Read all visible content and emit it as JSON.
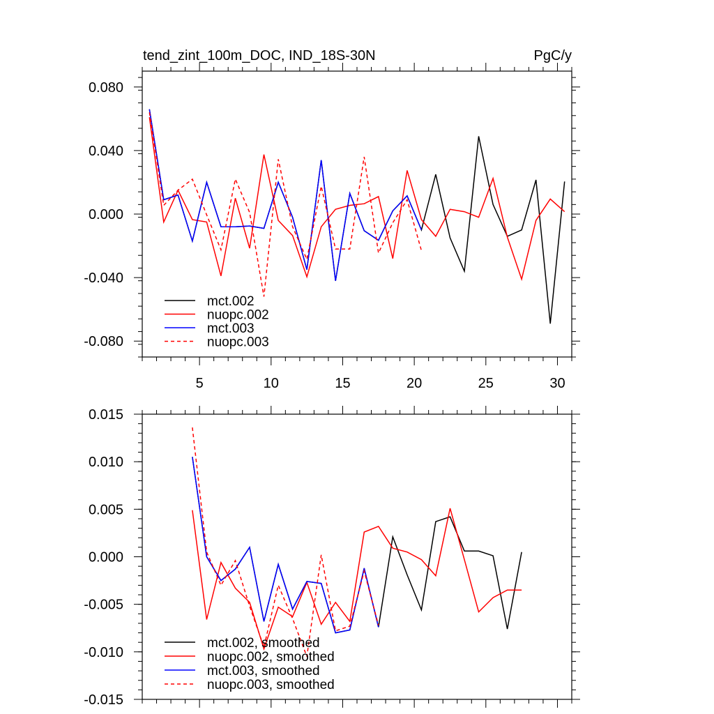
{
  "chart_data": [
    {
      "type": "line",
      "title": "tend_zint_100m_DOC, IND_18S-30N",
      "units": "PgC/y",
      "xlim": [
        1,
        31
      ],
      "ylim": [
        -0.09,
        0.09
      ],
      "xticks": [
        5,
        10,
        15,
        20,
        25,
        30
      ],
      "yticks": [
        0.08,
        0.04,
        0.0,
        -0.04,
        -0.08
      ],
      "ytick_labels": [
        "0.080",
        "0.040",
        "0.000",
        "-0.040",
        "-0.080"
      ],
      "legend_position": "bottom-left",
      "series": [
        {
          "name": "mct.002",
          "color": "#000000",
          "dash": "solid",
          "x": [
            1.5,
            2.5,
            3.5,
            4.5,
            5.5,
            6.5,
            7.5,
            8.5,
            9.5,
            10.5,
            11.5,
            12.5,
            13.5,
            14.5,
            15.5,
            16.5,
            17.5,
            18.5,
            19.5,
            20.5,
            21.5,
            22.5,
            23.5,
            24.5,
            25.5,
            26.5,
            27.5,
            28.5,
            29.5,
            30.5
          ],
          "y": [
            0.066,
            0.009,
            0.012,
            -0.017,
            0.02,
            -0.008,
            -0.008,
            -0.0075,
            -0.009,
            0.02,
            -0.002,
            -0.035,
            0.034,
            -0.042,
            0.013,
            -0.0105,
            -0.0165,
            0.002,
            0.0115,
            -0.01,
            0.025,
            -0.015,
            -0.036,
            0.049,
            0.006,
            -0.014,
            -0.01,
            0.0215,
            -0.069,
            0.0205
          ]
        },
        {
          "name": "nuopc.002",
          "color": "#ff0000",
          "dash": "solid",
          "x": [
            1.5,
            2.5,
            3.5,
            4.5,
            5.5,
            6.5,
            7.5,
            8.5,
            9.5,
            10.5,
            11.5,
            12.5,
            13.5,
            14.5,
            15.5,
            16.5,
            17.5,
            18.5,
            19.5,
            20.5,
            21.5,
            22.5,
            23.5,
            24.5,
            25.5,
            26.5,
            27.5,
            28.5,
            29.5,
            30.5
          ],
          "y": [
            0.061,
            -0.005,
            0.015,
            -0.0035,
            -0.005,
            -0.039,
            0.01,
            -0.0215,
            0.0375,
            -0.004,
            -0.0135,
            -0.0395,
            -0.008,
            0.003,
            0.0055,
            0.0065,
            0.011,
            -0.028,
            0.0275,
            -0.0035,
            -0.014,
            0.003,
            0.0015,
            -0.002,
            0.0225,
            -0.0145,
            -0.041,
            -0.004,
            0.0095,
            0.0015
          ]
        },
        {
          "name": "mct.003",
          "color": "#0000ff",
          "dash": "solid",
          "x": [
            1.5,
            2.5,
            3.5,
            4.5,
            5.5,
            6.5,
            7.5,
            8.5,
            9.5,
            10.5,
            11.5,
            12.5,
            13.5,
            14.5,
            15.5,
            16.5,
            17.5,
            18.5,
            19.5,
            20.5
          ],
          "y": [
            0.066,
            0.009,
            0.012,
            -0.017,
            0.02,
            -0.008,
            -0.008,
            -0.0075,
            -0.009,
            0.02,
            -0.002,
            -0.035,
            0.034,
            -0.042,
            0.013,
            -0.0105,
            -0.0165,
            0.002,
            0.0115,
            -0.01
          ]
        },
        {
          "name": "nuopc.003",
          "color": "#ff0000",
          "dash": "dashed",
          "x": [
            1.5,
            2.5,
            3.5,
            4.5,
            5.5,
            6.5,
            7.5,
            8.5,
            9.5,
            10.5,
            11.5,
            12.5,
            13.5,
            14.5,
            15.5,
            16.5,
            17.5,
            18.5,
            19.5,
            20.5
          ],
          "y": [
            0.064,
            0.0055,
            0.015,
            0.022,
            -0.0005,
            -0.0225,
            0.022,
            0.001,
            -0.052,
            0.0345,
            -0.008,
            -0.0285,
            0.0175,
            -0.022,
            -0.022,
            0.036,
            -0.0245,
            -0.0055,
            0.009,
            -0.023
          ]
        }
      ]
    },
    {
      "type": "line",
      "title": "",
      "xlim": [
        1,
        31
      ],
      "ylim": [
        -0.015,
        0.015
      ],
      "xticks": [
        5,
        10,
        15,
        20,
        25,
        30
      ],
      "yticks": [
        0.015,
        0.01,
        0.005,
        0.0,
        -0.005,
        -0.01,
        -0.015
      ],
      "ytick_labels": [
        "0.015",
        "0.010",
        "0.005",
        "0.000",
        "-0.005",
        "-0.010",
        "-0.015"
      ],
      "legend_position": "bottom-left",
      "series": [
        {
          "name": "mct.002, smoothed",
          "color": "#000000",
          "dash": "solid",
          "x": [
            4.5,
            5.5,
            6.5,
            7.5,
            8.5,
            9.5,
            10.5,
            11.5,
            12.5,
            13.5,
            14.5,
            15.5,
            16.5,
            17.5,
            18.5,
            19.5,
            20.5,
            21.5,
            22.5,
            23.5,
            24.5,
            25.5,
            26.5,
            27.5
          ],
          "y": [
            0.0105,
            0.0,
            -0.0025,
            -0.0013,
            0.001,
            -0.0068,
            -0.0008,
            -0.0055,
            -0.0026,
            -0.0028,
            -0.008,
            -0.0077,
            -0.0012,
            -0.0074,
            0.0021,
            -0.0019,
            -0.0056,
            0.0037,
            0.0042,
            0.0006,
            0.0006,
            0.0001,
            -0.0076,
            0.0005
          ]
        },
        {
          "name": "nuopc.002, smoothed",
          "color": "#ff0000",
          "dash": "solid",
          "x": [
            4.5,
            5.5,
            6.5,
            7.5,
            8.5,
            9.5,
            10.5,
            11.5,
            12.5,
            13.5,
            14.5,
            15.5,
            16.5,
            17.5,
            18.5,
            19.5,
            20.5,
            21.5,
            22.5,
            23.5,
            24.5,
            25.5,
            26.5,
            27.5
          ],
          "y": [
            0.0049,
            -0.0066,
            -0.0006,
            -0.0033,
            -0.0048,
            -0.0097,
            -0.0053,
            -0.0063,
            -0.0027,
            -0.0071,
            -0.0048,
            -0.0068,
            0.0026,
            0.0032,
            0.0009,
            0.0005,
            -0.0003,
            -0.002,
            0.0051,
            -0.0003,
            -0.0058,
            -0.0043,
            -0.0035,
            -0.0035
          ]
        },
        {
          "name": "mct.003, smoothed",
          "color": "#0000ff",
          "dash": "solid",
          "x": [
            4.5,
            5.5,
            6.5,
            7.5,
            8.5,
            9.5,
            10.5,
            11.5,
            12.5,
            13.5,
            14.5,
            15.5,
            16.5,
            17.5
          ],
          "y": [
            0.0105,
            0.0,
            -0.0025,
            -0.0013,
            0.001,
            -0.0068,
            -0.0008,
            -0.0055,
            -0.0026,
            -0.0028,
            -0.008,
            -0.0077,
            -0.0012,
            -0.0074
          ]
        },
        {
          "name": "nuopc.003, smoothed",
          "color": "#ff0000",
          "dash": "dashed",
          "x": [
            4.5,
            5.5,
            6.5,
            7.5,
            8.5,
            9.5,
            10.5,
            11.5,
            12.5,
            13.5,
            14.5,
            15.5,
            16.5,
            17.5
          ],
          "y": [
            0.0136,
            0.0005,
            -0.003,
            -0.0004,
            -0.0052,
            -0.0095,
            -0.003,
            -0.0065,
            -0.0105,
            0.0002,
            -0.0078,
            -0.0073,
            -0.0015,
            -0.0072
          ]
        }
      ]
    }
  ]
}
